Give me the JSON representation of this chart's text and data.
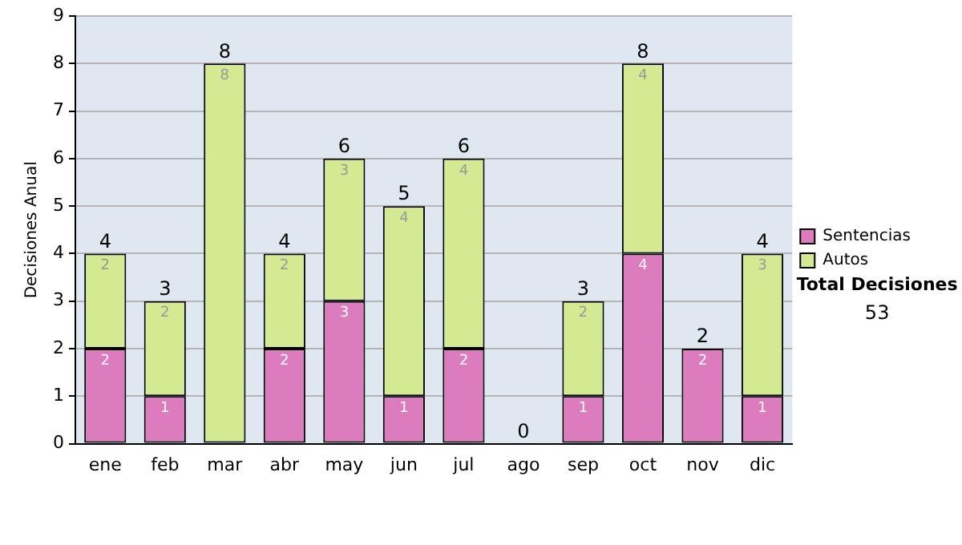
{
  "chart_data": {
    "type": "bar",
    "stacked": true,
    "ylabel": "Decisiones Anual",
    "categories": [
      "ene",
      "feb",
      "mar",
      "abr",
      "may",
      "jun",
      "jul",
      "ago",
      "sep",
      "oct",
      "nov",
      "dic"
    ],
    "series": [
      {
        "name": "Sentencias",
        "color": "#dc7cbf",
        "values": [
          2,
          1,
          0,
          2,
          3,
          1,
          2,
          0,
          1,
          4,
          2,
          1
        ],
        "value_labels": [
          "2",
          "1",
          null,
          "2",
          "3",
          "1",
          "2",
          null,
          "1",
          "4",
          "2",
          "1"
        ]
      },
      {
        "name": "Autos",
        "color": "#d3ea93",
        "values": [
          2,
          2,
          8,
          2,
          3,
          4,
          4,
          0,
          2,
          4,
          0,
          3
        ],
        "value_labels": [
          "2",
          "2",
          "8",
          "2",
          "3",
          "4",
          "4",
          null,
          "2",
          "4",
          null,
          "3"
        ]
      }
    ],
    "totals": [
      "4",
      "3",
      "8",
      "4",
      "6",
      "5",
      "6",
      "0",
      "3",
      "8",
      "2",
      "4"
    ],
    "ylim": [
      0,
      9
    ],
    "yticks": [
      0,
      1,
      2,
      3,
      4,
      5,
      6,
      7,
      8,
      9
    ],
    "grid": "y",
    "legend": "right",
    "annotations": [
      "Total Decisiones",
      "53"
    ]
  }
}
